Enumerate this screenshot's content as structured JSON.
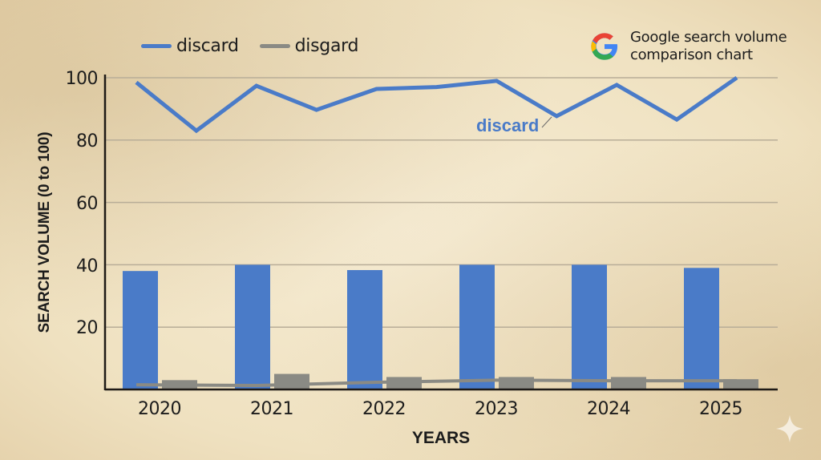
{
  "chart_data": {
    "type": "bar",
    "title": "Google search volume comparison chart",
    "xlabel": "YEARS",
    "ylabel": "SEARCH VOLUME (0 to 100)",
    "ylim": [
      0,
      100
    ],
    "yticks": [
      20,
      40,
      60,
      80,
      100
    ],
    "grid": true,
    "legend_position": "top-left",
    "categories": [
      "2020",
      "2021",
      "2022",
      "2023",
      "2024",
      "2025"
    ],
    "series": [
      {
        "name": "discard",
        "type": "bar",
        "color": "#4a7bc8",
        "values": [
          38,
          40,
          38.3,
          40,
          40,
          39
        ]
      },
      {
        "name": "disgard",
        "type": "bar",
        "color": "#8a8a84",
        "values": [
          3,
          5,
          4,
          4,
          4,
          3.3
        ]
      },
      {
        "name": "discard",
        "type": "line",
        "color": "#4a7bc8",
        "x": [
          2020.0,
          2020.5,
          2021.0,
          2021.5,
          2022.0,
          2022.5,
          2023.0,
          2023.5,
          2024.0,
          2024.5,
          2025.0
        ],
        "values": [
          98.5,
          83,
          97.4,
          89.7,
          96.4,
          97,
          99,
          87.7,
          97.7,
          86.6,
          100
        ]
      },
      {
        "name": "disgard",
        "type": "line",
        "color": "#8a8a84",
        "x": [
          2020.0,
          2021.0,
          2022.0,
          2023.0,
          2024.0,
          2025.0
        ],
        "values": [
          1.5,
          1.3,
          2.3,
          3,
          2.8,
          2.8
        ]
      }
    ],
    "annotations": [
      {
        "text": "discard",
        "target_series": "discard",
        "position": "near 2023.5 dip"
      }
    ]
  },
  "legend": {
    "items": [
      {
        "label": "discard",
        "color": "#4a7bc8"
      },
      {
        "label": "disgard",
        "color": "#8a8a84"
      }
    ]
  },
  "badge": {
    "line1": "Google search volume",
    "line2": "comparison chart"
  },
  "axis": {
    "y_ticks": [
      "100",
      "80",
      "60",
      "40",
      "20"
    ],
    "x_ticks": [
      "2020",
      "2021",
      "2022",
      "2023",
      "2024",
      "2025"
    ],
    "y_title": "SEARCH VOLUME (0 to 100)",
    "x_title": "YEARS"
  },
  "annotation": {
    "label": "discard"
  }
}
